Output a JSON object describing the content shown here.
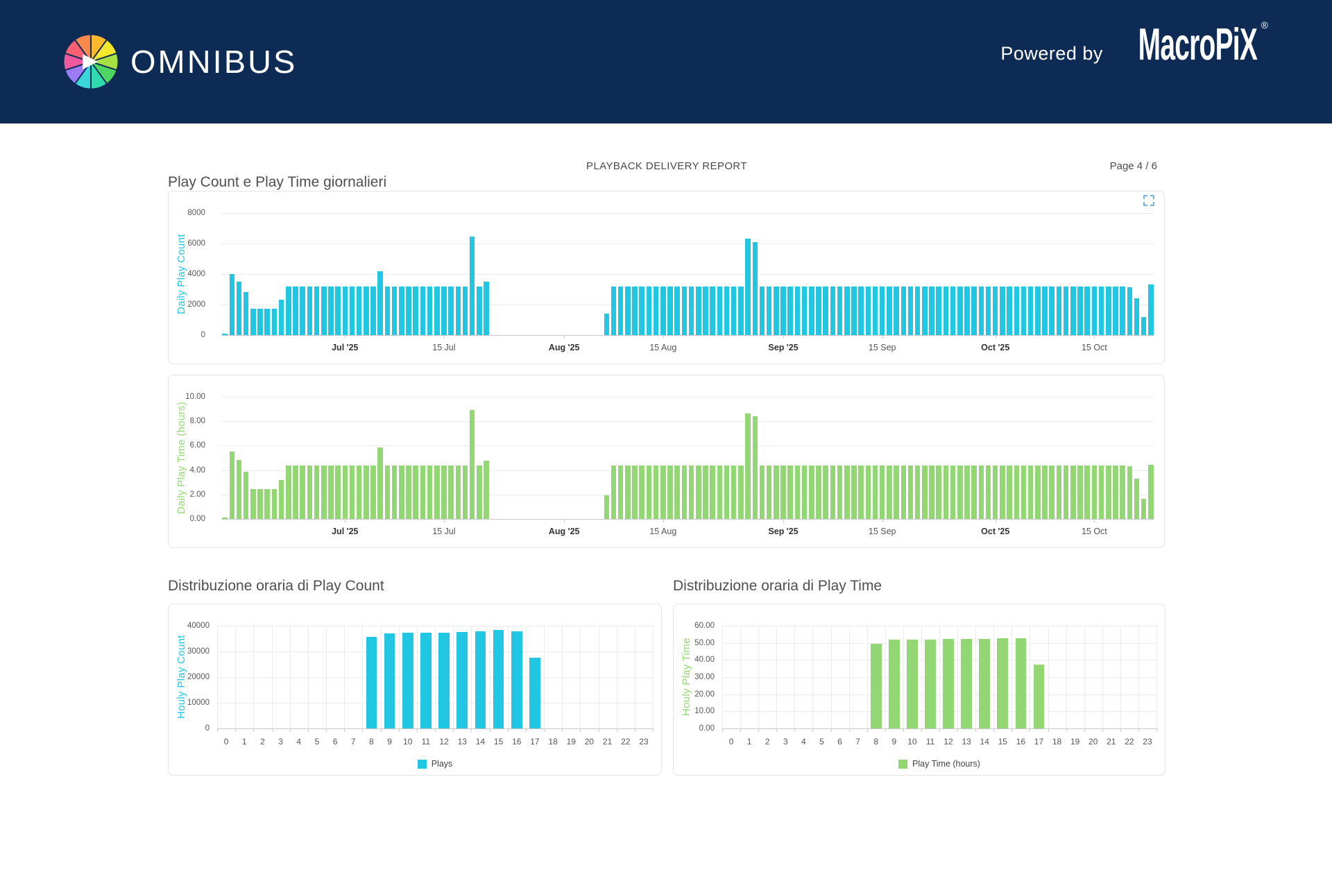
{
  "header": {
    "brand": "OMNIBUS",
    "powered_by": "Powered by",
    "partner_brand": "MacroPiX",
    "registered": "®",
    "logo_colors": [
      "#fdb92c",
      "#f4e72c",
      "#a6e042",
      "#4fd662",
      "#2fdab0",
      "#38d6d9",
      "#9a7df7",
      "#f0589f",
      "#fa5f72",
      "#f98a4b"
    ]
  },
  "page": {
    "report_title": "PLAYBACK DELIVERY REPORT",
    "page_label": "Page 4 / 6"
  },
  "sections": {
    "daily_title": "Play Count e Play Time giornalieri",
    "hourly_count_title": "Distribuzione oraria di Play Count",
    "hourly_time_title": "Distribuzione oraria di Play Time"
  },
  "colors": {
    "header_navy": "#0e2b55",
    "play_count_cyan": "#21c6e3",
    "play_time_green": "#92d773",
    "grid_light": "#ececec",
    "axis_baseline": "#c9c9c9",
    "panel_border": "#e3e3e3",
    "zoom_icon_blue": "#6fb3dc"
  },
  "chart_data": [
    {
      "id": "daily-play-count",
      "mount": "chart-daily-count",
      "type": "bar",
      "ylabel": "Daily Play Count",
      "ylabel_color": "#21c6e3",
      "bar_color": "#21c6e3",
      "bar_frac": 0.74,
      "ylim": [
        0,
        8000
      ],
      "yticks": [
        {
          "v": 0,
          "label": "0"
        },
        {
          "v": 2000,
          "label": "2000"
        },
        {
          "v": 4000,
          "label": "4000"
        },
        {
          "v": 6000,
          "label": "6000"
        },
        {
          "v": 8000,
          "label": "8000"
        }
      ],
      "x_start_date": "2025-06-14",
      "xticks": [
        {
          "index": 17,
          "label": "Jul '25",
          "bold": true
        },
        {
          "index": 31,
          "label": "15 Jul",
          "bold": false
        },
        {
          "index": 48,
          "label": "Aug '25",
          "bold": true
        },
        {
          "index": 62,
          "label": "15 Aug",
          "bold": false
        },
        {
          "index": 79,
          "label": "Sep '25",
          "bold": true
        },
        {
          "index": 93,
          "label": "15 Sep",
          "bold": false
        },
        {
          "index": 109,
          "label": "Oct '25",
          "bold": true
        },
        {
          "index": 123,
          "label": "15 Oct",
          "bold": false
        }
      ],
      "grid_vertical": false,
      "values": [
        100,
        4000,
        3500,
        2800,
        1750,
        1750,
        1750,
        1750,
        2300,
        3200,
        3200,
        3200,
        3200,
        3200,
        3200,
        3200,
        3200,
        3200,
        3200,
        3200,
        3200,
        3200,
        4200,
        3200,
        3200,
        3200,
        3200,
        3200,
        3200,
        3200,
        3200,
        3200,
        3200,
        3200,
        3200,
        6450,
        3200,
        3500,
        0,
        0,
        0,
        0,
        0,
        0,
        0,
        0,
        0,
        0,
        0,
        0,
        0,
        0,
        0,
        0,
        1400,
        3200,
        3200,
        3200,
        3200,
        3200,
        3200,
        3200,
        3200,
        3200,
        3200,
        3200,
        3200,
        3200,
        3200,
        3200,
        3200,
        3200,
        3200,
        3200,
        6300,
        6100,
        3200,
        3200,
        3200,
        3200,
        3200,
        3200,
        3200,
        3200,
        3200,
        3200,
        3200,
        3200,
        3200,
        3200,
        3200,
        3200,
        3200,
        3200,
        3200,
        3200,
        3200,
        3200,
        3200,
        3200,
        3200,
        3200,
        3200,
        3200,
        3200,
        3200,
        3200,
        3200,
        3200,
        3200,
        3200,
        3200,
        3200,
        3200,
        3200,
        3200,
        3200,
        3200,
        3200,
        3200,
        3200,
        3200,
        3200,
        3200,
        3200,
        3200,
        3200,
        3200,
        3150,
        2400,
        1200,
        3300
      ]
    },
    {
      "id": "daily-play-time",
      "mount": "chart-daily-time",
      "type": "bar",
      "ylabel": "Daily Play Time (hours)",
      "ylabel_color": "#92d773",
      "bar_color": "#92d773",
      "bar_frac": 0.74,
      "ylim": [
        0,
        10
      ],
      "yticks": [
        {
          "v": 0,
          "label": "0.00"
        },
        {
          "v": 2,
          "label": "2.00"
        },
        {
          "v": 4,
          "label": "4.00"
        },
        {
          "v": 6,
          "label": "6.00"
        },
        {
          "v": 8,
          "label": "8.00"
        },
        {
          "v": 10,
          "label": "10.00"
        }
      ],
      "x_start_date": "2025-06-14",
      "xticks": [
        {
          "index": 17,
          "label": "Jul '25",
          "bold": true
        },
        {
          "index": 31,
          "label": "15 Jul",
          "bold": false
        },
        {
          "index": 48,
          "label": "Aug '25",
          "bold": true
        },
        {
          "index": 62,
          "label": "15 Aug",
          "bold": false
        },
        {
          "index": 79,
          "label": "Sep '25",
          "bold": true
        },
        {
          "index": 93,
          "label": "15 Sep",
          "bold": false
        },
        {
          "index": 109,
          "label": "Oct '25",
          "bold": true
        },
        {
          "index": 123,
          "label": "15 Oct",
          "bold": false
        }
      ],
      "grid_vertical": false,
      "values": [
        0.1,
        5.5,
        4.85,
        3.85,
        2.45,
        2.45,
        2.45,
        2.45,
        3.2,
        4.4,
        4.4,
        4.4,
        4.4,
        4.4,
        4.4,
        4.4,
        4.4,
        4.4,
        4.4,
        4.4,
        4.4,
        4.4,
        5.85,
        4.4,
        4.4,
        4.4,
        4.4,
        4.4,
        4.4,
        4.4,
        4.4,
        4.4,
        4.4,
        4.4,
        4.4,
        8.9,
        4.4,
        4.8,
        0,
        0,
        0,
        0,
        0,
        0,
        0,
        0,
        0,
        0,
        0,
        0,
        0,
        0,
        0,
        0,
        1.95,
        4.4,
        4.4,
        4.4,
        4.4,
        4.4,
        4.4,
        4.4,
        4.4,
        4.4,
        4.4,
        4.4,
        4.4,
        4.4,
        4.4,
        4.4,
        4.4,
        4.4,
        4.4,
        4.4,
        8.65,
        8.4,
        4.4,
        4.4,
        4.4,
        4.4,
        4.4,
        4.4,
        4.4,
        4.4,
        4.4,
        4.4,
        4.4,
        4.4,
        4.4,
        4.4,
        4.4,
        4.4,
        4.4,
        4.4,
        4.4,
        4.4,
        4.4,
        4.4,
        4.4,
        4.4,
        4.4,
        4.4,
        4.4,
        4.4,
        4.4,
        4.4,
        4.4,
        4.4,
        4.4,
        4.4,
        4.4,
        4.4,
        4.4,
        4.4,
        4.4,
        4.4,
        4.4,
        4.4,
        4.4,
        4.4,
        4.4,
        4.4,
        4.4,
        4.4,
        4.4,
        4.4,
        4.4,
        4.4,
        4.3,
        3.3,
        1.65,
        4.45
      ]
    },
    {
      "id": "hourly-play-count",
      "mount": "chart-hourly-count",
      "type": "bar",
      "ylabel": "Houly Play Count",
      "ylabel_color": "#21c6e3",
      "bar_color": "#21c6e3",
      "bar_frac": 0.6,
      "ylim": [
        0,
        40000
      ],
      "yticks": [
        {
          "v": 0,
          "label": "0"
        },
        {
          "v": 10000,
          "label": "10000"
        },
        {
          "v": 20000,
          "label": "20000"
        },
        {
          "v": 30000,
          "label": "30000"
        },
        {
          "v": 40000,
          "label": "40000"
        }
      ],
      "categories": [
        "0",
        "1",
        "2",
        "3",
        "4",
        "5",
        "6",
        "7",
        "8",
        "9",
        "10",
        "11",
        "12",
        "13",
        "14",
        "15",
        "16",
        "17",
        "18",
        "19",
        "20",
        "21",
        "22",
        "23"
      ],
      "grid_vertical": true,
      "legend": {
        "label": "Plays"
      },
      "values": [
        0,
        0,
        0,
        0,
        0,
        0,
        0,
        0,
        35600,
        37000,
        37300,
        37400,
        37300,
        37600,
        37800,
        38400,
        37900,
        27500,
        0,
        0,
        0,
        0,
        0,
        0
      ]
    },
    {
      "id": "hourly-play-time",
      "mount": "chart-hourly-time",
      "type": "bar",
      "ylabel": "Houly Play Time",
      "ylabel_color": "#92d773",
      "bar_color": "#92d773",
      "bar_frac": 0.6,
      "ylim": [
        0,
        60
      ],
      "yticks": [
        {
          "v": 0,
          "label": "0.00"
        },
        {
          "v": 10,
          "label": "10.00"
        },
        {
          "v": 20,
          "label": "20.00"
        },
        {
          "v": 30,
          "label": "30.00"
        },
        {
          "v": 40,
          "label": "40.00"
        },
        {
          "v": 50,
          "label": "50.00"
        },
        {
          "v": 60,
          "label": "60.00"
        }
      ],
      "categories": [
        "0",
        "1",
        "2",
        "3",
        "4",
        "5",
        "6",
        "7",
        "8",
        "9",
        "10",
        "11",
        "12",
        "13",
        "14",
        "15",
        "16",
        "17",
        "18",
        "19",
        "20",
        "21",
        "22",
        "23"
      ],
      "grid_vertical": true,
      "legend": {
        "label": "Play Time (hours)"
      },
      "values": [
        0,
        0,
        0,
        0,
        0,
        0,
        0,
        0,
        49.3,
        51.7,
        52,
        51.8,
        52.4,
        52.2,
        52.5,
        52.8,
        52.6,
        37.5,
        0,
        0,
        0,
        0,
        0,
        0
      ]
    }
  ]
}
